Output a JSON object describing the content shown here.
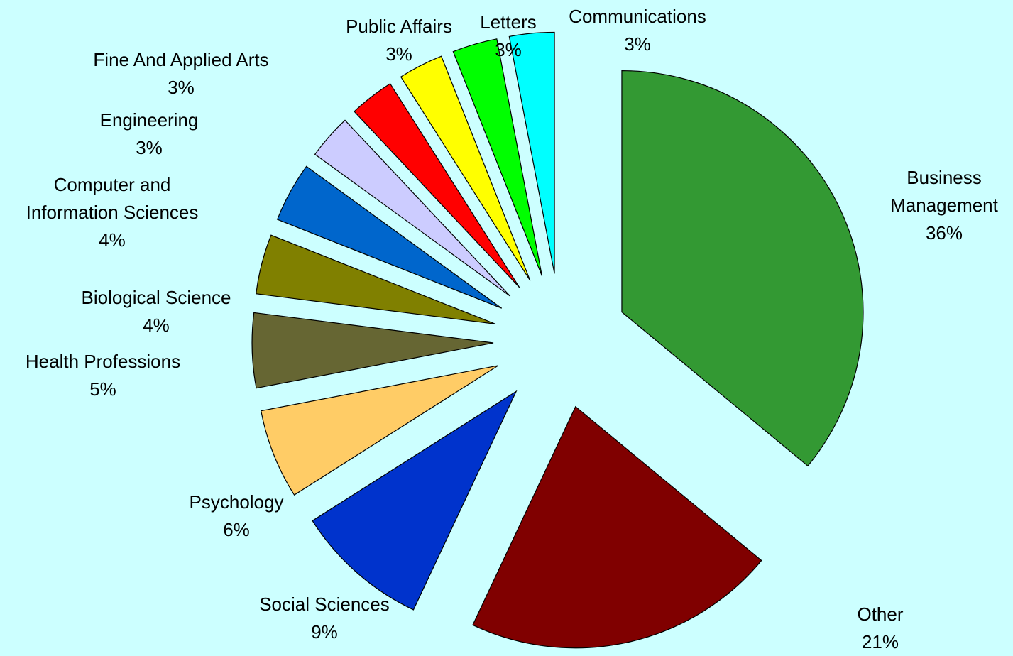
{
  "chart_data": {
    "type": "pie",
    "categories": [
      "Business Management",
      "Other",
      "Social Sciences",
      "Psychology",
      "Health Professions",
      "Biological Science",
      "Computer and Information Sciences",
      "Engineering",
      "Fine And Applied Arts",
      "Public Affairs",
      "Letters",
      "Communications"
    ],
    "values": [
      36,
      21,
      9,
      6,
      5,
      4,
      4,
      3,
      3,
      3,
      3,
      3
    ],
    "value_labels": [
      "36%",
      "21%",
      "9%",
      "6%",
      "5%",
      "4%",
      "4%",
      "3%",
      "3%",
      "3%",
      "3%",
      "3%"
    ],
    "colors": [
      "#339933",
      "#800000",
      "#0033cc",
      "#ffcc66",
      "#666633",
      "#808000",
      "#0066cc",
      "#ccccff",
      "#ff0000",
      "#ffff00",
      "#00ff00",
      "#00ffff"
    ]
  }
}
